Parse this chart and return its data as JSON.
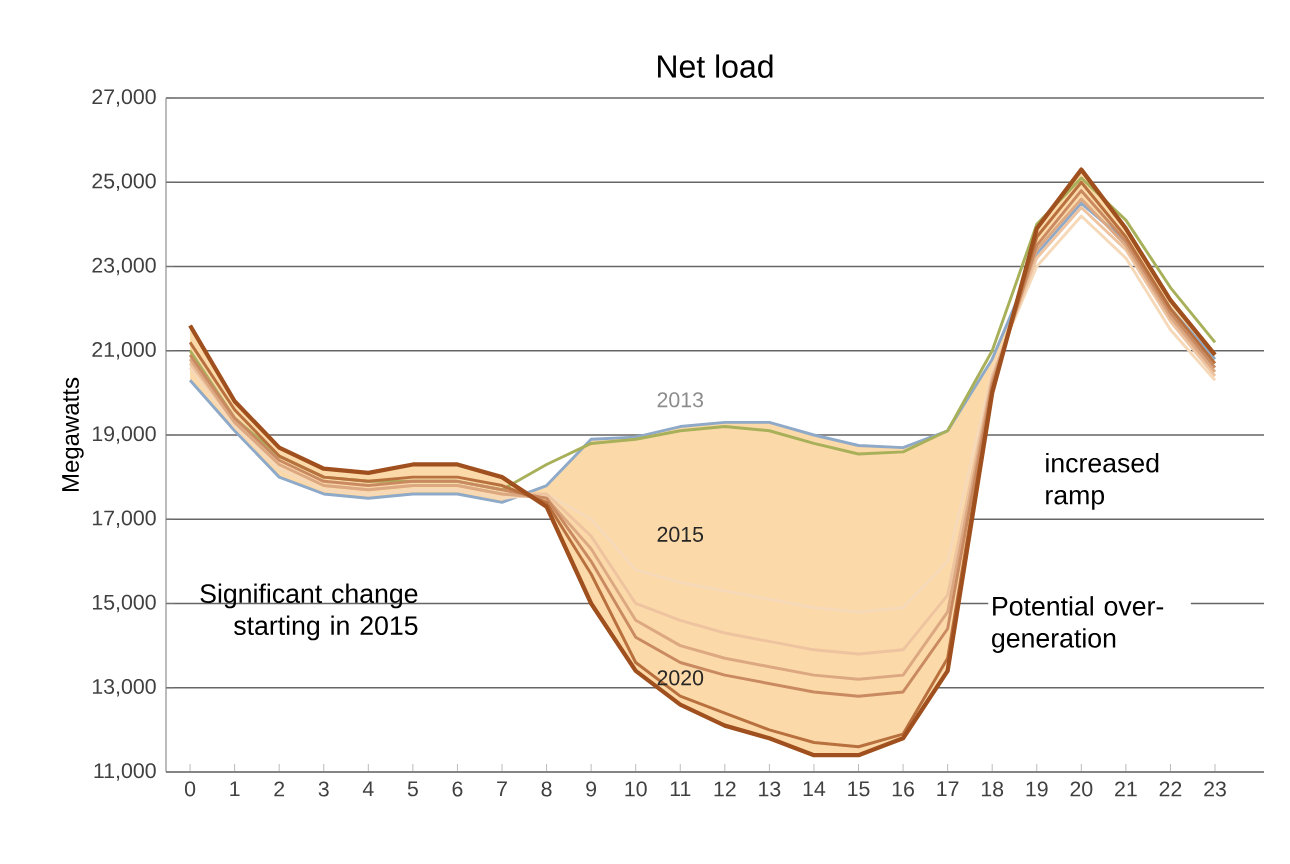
{
  "chart_data": {
    "type": "line",
    "title": "Net load",
    "ylabel": "Megawatts",
    "categories": [
      "0",
      "1",
      "2",
      "3",
      "4",
      "5",
      "6",
      "7",
      "8",
      "9",
      "10",
      "11",
      "12",
      "13",
      "14",
      "15",
      "16",
      "17",
      "18",
      "19",
      "20",
      "21",
      "22",
      "23"
    ],
    "ylim": [
      11000,
      27000
    ],
    "yticks": [
      {
        "value": 11000,
        "label": "11,000"
      },
      {
        "value": 13000,
        "label": "13,000"
      },
      {
        "value": 15000,
        "label": "15,000"
      },
      {
        "value": 17000,
        "label": "17,000"
      },
      {
        "value": 19000,
        "label": "19,000"
      },
      {
        "value": 21000,
        "label": "21,000"
      },
      {
        "value": 23000,
        "label": "23,000"
      },
      {
        "value": 25000,
        "label": "25,000"
      },
      {
        "value": 27000,
        "label": "27,000"
      }
    ],
    "grid": "y",
    "legend": false,
    "marker": "none",
    "line_style": "solid",
    "series": [
      {
        "name": "2013",
        "color": "#8fa9c8",
        "values": [
          20300,
          19100,
          18000,
          17600,
          17500,
          17600,
          17600,
          17400,
          17800,
          18900,
          18950,
          19200,
          19300,
          19300,
          19000,
          18750,
          18700,
          19100,
          20800,
          23300,
          24500,
          23600,
          22000,
          20800
        ]
      },
      {
        "color": "#a8b05a",
        "values": [
          21000,
          19400,
          18500,
          18000,
          17900,
          17900,
          17900,
          17700,
          18300,
          18800,
          18900,
          19100,
          19200,
          19100,
          18800,
          18550,
          18600,
          19100,
          21000,
          24000,
          25100,
          24100,
          22500,
          21200
        ]
      },
      {
        "name": "2015",
        "color": "#f6d9b8",
        "values": [
          20600,
          19200,
          18200,
          17700,
          17600,
          17700,
          17700,
          17500,
          17600,
          17000,
          15800,
          15500,
          15300,
          15100,
          14900,
          14800,
          14900,
          16000,
          20500,
          23000,
          24200,
          23200,
          21500,
          20300
        ]
      },
      {
        "color": "#eec4a0",
        "values": [
          20700,
          19300,
          18300,
          17800,
          17700,
          17800,
          17800,
          17600,
          17600,
          16600,
          15000,
          14600,
          14300,
          14100,
          13900,
          13800,
          13900,
          15200,
          20400,
          23200,
          24400,
          23400,
          21700,
          20400
        ]
      },
      {
        "color": "#dca882",
        "values": [
          20800,
          19300,
          18300,
          17800,
          17700,
          17800,
          17800,
          17600,
          17500,
          16300,
          14600,
          14000,
          13700,
          13500,
          13300,
          13200,
          13300,
          14800,
          20300,
          23400,
          24600,
          23500,
          21800,
          20500
        ]
      },
      {
        "color": "#c98a62",
        "values": [
          20900,
          19400,
          18400,
          17900,
          17800,
          17900,
          17900,
          17700,
          17500,
          16000,
          14200,
          13600,
          13300,
          13100,
          12900,
          12800,
          12900,
          14400,
          20200,
          23500,
          24800,
          23600,
          21900,
          20600
        ]
      },
      {
        "color": "#b8703e",
        "values": [
          21200,
          19600,
          18500,
          18000,
          17900,
          18000,
          18000,
          17800,
          17400,
          15700,
          13600,
          12800,
          12400,
          12000,
          11700,
          11600,
          11900,
          13700,
          20100,
          23700,
          25000,
          23700,
          22000,
          20700
        ]
      },
      {
        "name": "2020",
        "color": "#a0501e",
        "values": [
          21600,
          19800,
          18700,
          18200,
          18100,
          18300,
          18300,
          18000,
          17300,
          15000,
          13400,
          12600,
          12100,
          11800,
          11400,
          11400,
          11800,
          13400,
          20000,
          23900,
          25300,
          23900,
          22200,
          20900
        ],
        "lower": [
          21600,
          19800,
          18700,
          18200,
          18100,
          18300,
          18300,
          18000,
          17300,
          15000,
          13400,
          12600,
          12100,
          11800,
          11400,
          11400,
          11800,
          13400,
          20000,
          23900,
          25300,
          23900,
          22200,
          20900
        ],
        "upper": [
          20300,
          19100,
          18000,
          17600,
          17500,
          17600,
          17600,
          17400,
          17800,
          18900,
          18950,
          19200,
          19300,
          19300,
          19000,
          18750,
          18700,
          19100,
          20800,
          23300,
          24500,
          23600,
          22000,
          20800
        ]
      }
    ],
    "annotations": [
      "Significant change starting in 2015",
      "increased ramp",
      "Potential over-generation"
    ]
  }
}
